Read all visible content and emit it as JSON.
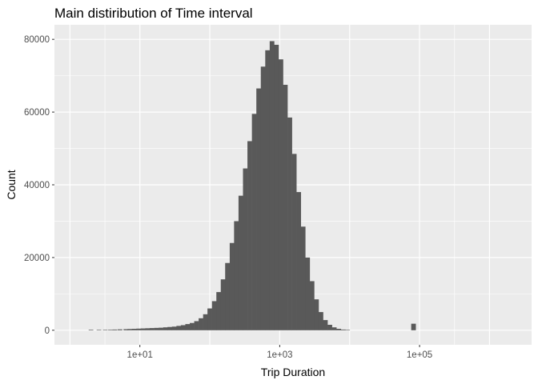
{
  "chart_data": {
    "type": "bar",
    "title": "Main distiribution of Time interval",
    "xlabel": "Trip Duration",
    "ylabel": "Count",
    "x_scale": "log10",
    "xlim": [
      0.6,
      4000000
    ],
    "ylim": [
      -4000,
      84000
    ],
    "x_ticks": [
      {
        "value": 10,
        "label": "1e+01"
      },
      {
        "value": 1000,
        "label": "1e+03"
      },
      {
        "value": 100000,
        "label": "1e+05"
      }
    ],
    "y_ticks": [
      {
        "value": 0,
        "label": "0"
      },
      {
        "value": 20000,
        "label": "20000"
      },
      {
        "value": 40000,
        "label": "40000"
      },
      {
        "value": 60000,
        "label": "60000"
      },
      {
        "value": 80000,
        "label": "80000"
      }
    ],
    "grid": true,
    "bin_width_log10": 0.0667,
    "bins": [
      {
        "x": 2.0,
        "count": 150
      },
      {
        "x": 2.6,
        "count": 120
      },
      {
        "x": 3.2,
        "count": 100
      },
      {
        "x": 3.8,
        "count": 150
      },
      {
        "x": 4.4,
        "count": 200
      },
      {
        "x": 5.2,
        "count": 250
      },
      {
        "x": 6.3,
        "count": 300
      },
      {
        "x": 7.2,
        "count": 350
      },
      {
        "x": 8.3,
        "count": 400
      },
      {
        "x": 9.6,
        "count": 450
      },
      {
        "x": 11.1,
        "count": 500
      },
      {
        "x": 12.9,
        "count": 550
      },
      {
        "x": 14.9,
        "count": 600
      },
      {
        "x": 17.3,
        "count": 650
      },
      {
        "x": 20.0,
        "count": 700
      },
      {
        "x": 23.2,
        "count": 800
      },
      {
        "x": 26.8,
        "count": 900
      },
      {
        "x": 31.0,
        "count": 1000
      },
      {
        "x": 36.0,
        "count": 1200
      },
      {
        "x": 41.6,
        "count": 1400
      },
      {
        "x": 48.2,
        "count": 1700
      },
      {
        "x": 55.8,
        "count": 2000
      },
      {
        "x": 64.6,
        "count": 2500
      },
      {
        "x": 74.8,
        "count": 3300
      },
      {
        "x": 86.6,
        "count": 4400
      },
      {
        "x": 100,
        "count": 6000
      },
      {
        "x": 116,
        "count": 8000
      },
      {
        "x": 134,
        "count": 10500
      },
      {
        "x": 155,
        "count": 14000
      },
      {
        "x": 179,
        "count": 18500
      },
      {
        "x": 208,
        "count": 24000
      },
      {
        "x": 240,
        "count": 30000
      },
      {
        "x": 278,
        "count": 37000
      },
      {
        "x": 322,
        "count": 44500
      },
      {
        "x": 373,
        "count": 52000
      },
      {
        "x": 432,
        "count": 59500
      },
      {
        "x": 500,
        "count": 66500
      },
      {
        "x": 579,
        "count": 72500
      },
      {
        "x": 670,
        "count": 77000
      },
      {
        "x": 776,
        "count": 79500
      },
      {
        "x": 898,
        "count": 78500
      },
      {
        "x": 1040,
        "count": 74500
      },
      {
        "x": 1204,
        "count": 67500
      },
      {
        "x": 1394,
        "count": 58500
      },
      {
        "x": 1614,
        "count": 48500
      },
      {
        "x": 1868,
        "count": 38000
      },
      {
        "x": 2163,
        "count": 28500
      },
      {
        "x": 2504,
        "count": 20000
      },
      {
        "x": 2899,
        "count": 13500
      },
      {
        "x": 3356,
        "count": 8500
      },
      {
        "x": 3886,
        "count": 5000
      },
      {
        "x": 4499,
        "count": 2800
      },
      {
        "x": 5209,
        "count": 1500
      },
      {
        "x": 6030,
        "count": 800
      },
      {
        "x": 6982,
        "count": 400
      },
      {
        "x": 8084,
        "count": 200
      },
      {
        "x": 9360,
        "count": 100
      },
      {
        "x": 82000,
        "count": 1800
      }
    ]
  }
}
